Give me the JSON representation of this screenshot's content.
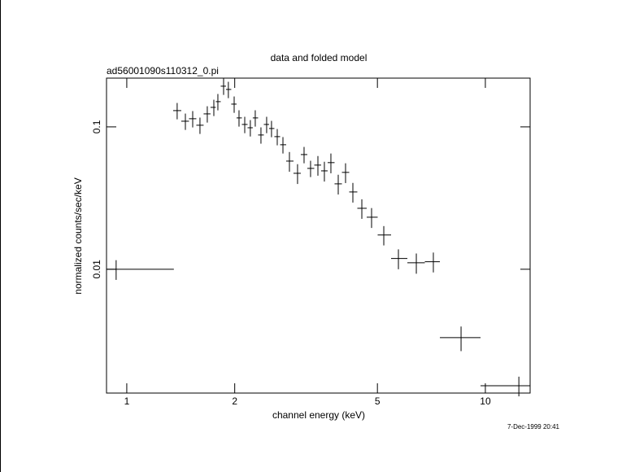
{
  "chart_data": {
    "type": "errorbar",
    "title": "data and folded model",
    "subtitle": "ad56001090s110312_0.pi",
    "x_label": "channel energy (keV)",
    "y_label": "normalized counts/sec/keV",
    "date": "7-Dec-1999 20:41",
    "x_log": true,
    "y_log": true,
    "color": "#000000",
    "xlim": [
      0.878,
      13.33
    ],
    "ylim": [
      0.00135,
      0.22
    ],
    "xticks": [
      1,
      2,
      5,
      10
    ],
    "yticks": [
      0.01,
      0.1
    ],
    "x": [
      0.934,
      1.382,
      1.457,
      1.527,
      1.6,
      1.677,
      1.749,
      1.795,
      1.862,
      1.92,
      1.993,
      2.056,
      2.133,
      2.211,
      2.282,
      2.367,
      2.455,
      2.533,
      2.628,
      2.726,
      2.842,
      2.994,
      3.122,
      3.255,
      3.412,
      3.557,
      3.709,
      3.888,
      4.075,
      4.271,
      4.524,
      4.816,
      5.209,
      5.722,
      6.419,
      7.161,
      8.555,
      12.4
    ],
    "x_low": [
      0.878,
      1.347,
      1.419,
      1.491,
      1.563,
      1.638,
      1.712,
      1.771,
      1.828,
      1.891,
      1.956,
      2.024,
      2.094,
      2.172,
      2.246,
      2.324,
      2.411,
      2.494,
      2.58,
      2.677,
      2.783,
      2.917,
      3.057,
      3.188,
      3.333,
      3.483,
      3.632,
      3.797,
      3.981,
      4.172,
      4.395,
      4.668,
      5.008,
      5.459,
      6.061,
      6.779,
      7.468,
      9.696
    ],
    "x_high": [
      1.353,
      1.419,
      1.491,
      1.563,
      1.638,
      1.712,
      1.771,
      1.828,
      1.891,
      1.956,
      2.024,
      2.094,
      2.172,
      2.246,
      2.324,
      2.411,
      2.494,
      2.58,
      2.677,
      2.783,
      2.917,
      3.057,
      3.188,
      3.333,
      3.483,
      3.632,
      3.797,
      3.981,
      4.172,
      4.395,
      4.668,
      5.008,
      5.459,
      6.061,
      6.779,
      7.468,
      9.696,
      13.33
    ],
    "y": [
      0.01,
      0.1301,
      0.1096,
      0.1141,
      0.1027,
      0.1234,
      0.1371,
      0.1504,
      0.1931,
      0.1832,
      0.1445,
      0.1156,
      0.104,
      0.0986,
      0.1156,
      0.0877,
      0.104,
      0.0974,
      0.0854,
      0.0749,
      0.0575,
      0.0472,
      0.0639,
      0.0511,
      0.0539,
      0.0491,
      0.0561,
      0.0398,
      0.0479,
      0.0349,
      0.0268,
      0.0232,
      0.0174,
      0.0119,
      0.0111,
      0.0113,
      0.00331,
      0.00152
    ],
    "y_err": [
      0.00158,
      0.0171,
      0.0144,
      0.015,
      0.0135,
      0.0162,
      0.018,
      0.0198,
      0.0254,
      0.0241,
      0.019,
      0.0152,
      0.0137,
      0.013,
      0.0152,
      0.0115,
      0.0137,
      0.0128,
      0.0112,
      0.0099,
      0.0091,
      0.0075,
      0.0084,
      0.0067,
      0.0085,
      0.0078,
      0.0089,
      0.0063,
      0.0076,
      0.0055,
      0.0042,
      0.0037,
      0.0027,
      0.0019,
      0.0018,
      0.0018,
      0.00065,
      0.00024
    ]
  }
}
